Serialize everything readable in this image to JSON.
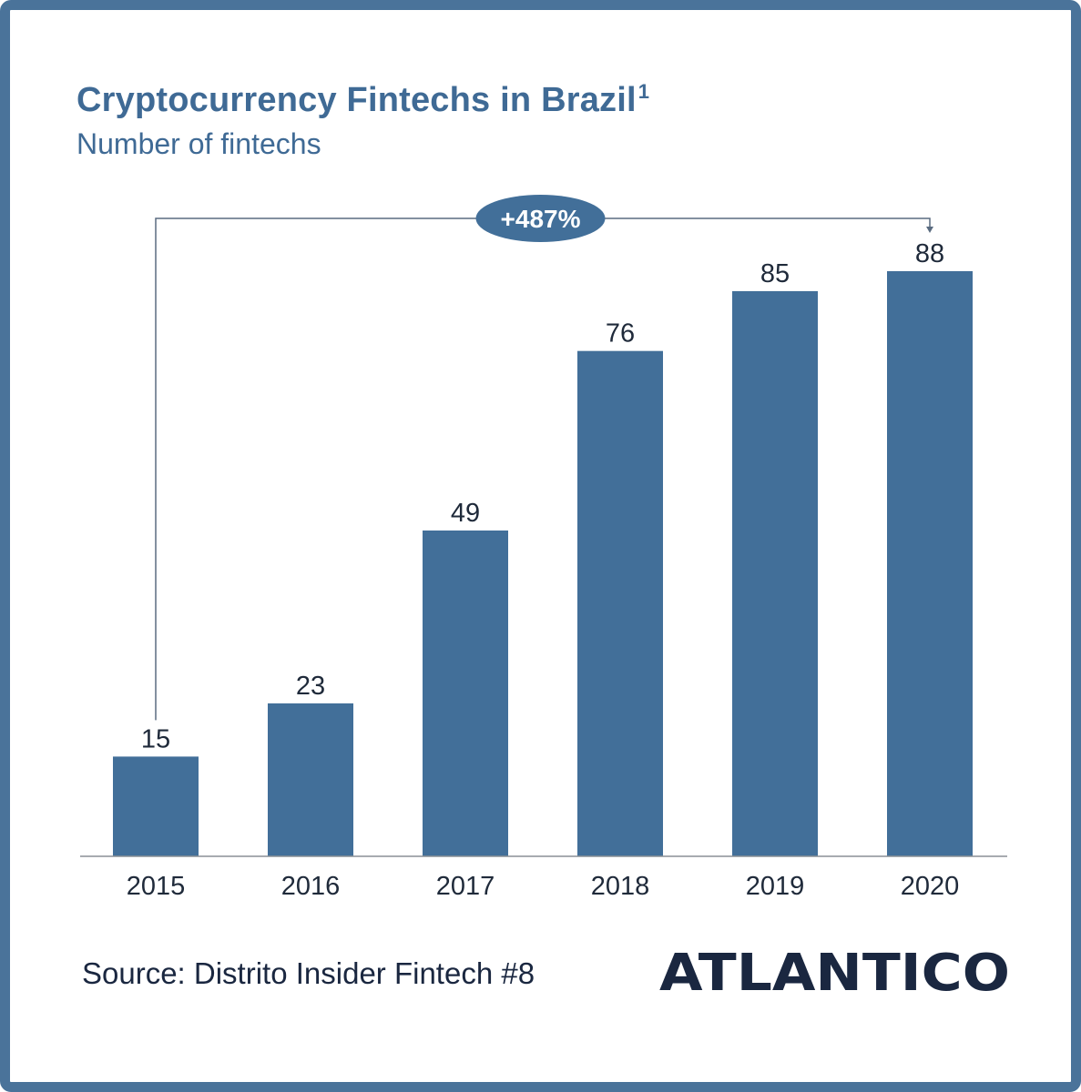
{
  "header": {
    "title": "Cryptocurrency Fintechs in Brazil",
    "title_footnote": "1",
    "subtitle": "Number of fintechs"
  },
  "chart_data": {
    "type": "bar",
    "title": "Cryptocurrency Fintechs in Brazil",
    "subtitle": "Number of fintechs",
    "categories": [
      "2015",
      "2016",
      "2017",
      "2018",
      "2019",
      "2020"
    ],
    "values": [
      15,
      23,
      49,
      76,
      85,
      88
    ],
    "xlabel": "",
    "ylabel": "Number of fintechs",
    "ylim": [
      0,
      88
    ],
    "grid": false,
    "annotation": {
      "text": "+487%",
      "from": "2015",
      "to": "2020"
    },
    "colors": {
      "bar": "#426f99",
      "annotation_fill": "#426f99",
      "annotation_text": "#ffffff",
      "connector": "#5a6b80"
    }
  },
  "footer": {
    "source": "Source: Distrito Insider Fintech #8",
    "logo_text": "ATLANTICO"
  },
  "colors": {
    "frame": "#4a739a",
    "title": "#3f6a95",
    "logo": "#1a2740"
  }
}
